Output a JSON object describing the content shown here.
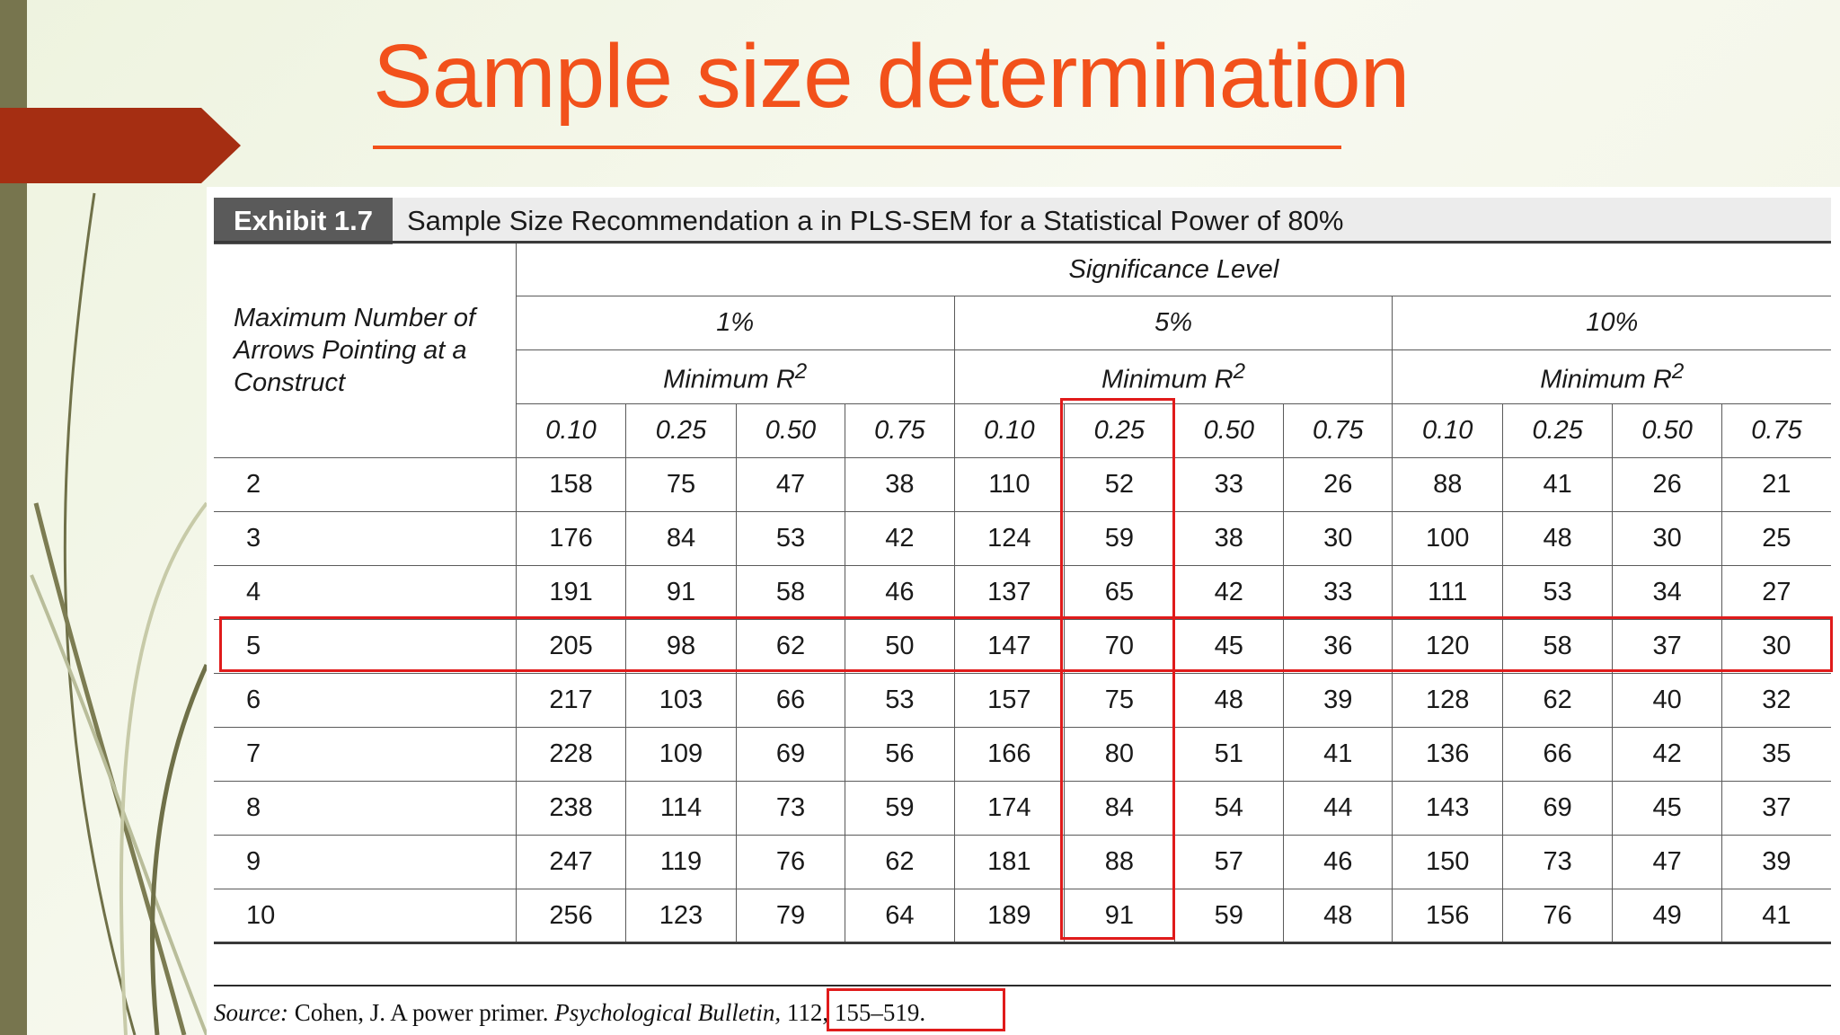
{
  "slide": {
    "title": "Sample size determination",
    "colors": {
      "accent": "#f2511b",
      "sidebar": "#77754e",
      "arrow": "#a52e12",
      "highlight": "#e01b1b"
    }
  },
  "exhibit": {
    "label": "Exhibit 1.7",
    "caption": "Sample Size Recommendation a in PLS-SEM for a Statistical Power of 80%",
    "stub_header": "Maximum Number of Arrows Pointing at a Construct",
    "significance_header": "Significance Level",
    "levels": [
      "1%",
      "5%",
      "10%"
    ],
    "min_r2_label": "Minimum R",
    "r2_superscript": "2",
    "r2_values": [
      "0.10",
      "0.25",
      "0.50",
      "0.75"
    ],
    "rows": [
      {
        "arrows": "2",
        "values": [
          "158",
          "75",
          "47",
          "38",
          "110",
          "52",
          "33",
          "26",
          "88",
          "41",
          "26",
          "21"
        ]
      },
      {
        "arrows": "3",
        "values": [
          "176",
          "84",
          "53",
          "42",
          "124",
          "59",
          "38",
          "30",
          "100",
          "48",
          "30",
          "25"
        ]
      },
      {
        "arrows": "4",
        "values": [
          "191",
          "91",
          "58",
          "46",
          "137",
          "65",
          "42",
          "33",
          "111",
          "53",
          "34",
          "27"
        ]
      },
      {
        "arrows": "5",
        "values": [
          "205",
          "98",
          "62",
          "50",
          "147",
          "70",
          "45",
          "36",
          "120",
          "58",
          "37",
          "30"
        ]
      },
      {
        "arrows": "6",
        "values": [
          "217",
          "103",
          "66",
          "53",
          "157",
          "75",
          "48",
          "39",
          "128",
          "62",
          "40",
          "32"
        ]
      },
      {
        "arrows": "7",
        "values": [
          "228",
          "109",
          "69",
          "56",
          "166",
          "80",
          "51",
          "41",
          "136",
          "66",
          "42",
          "35"
        ]
      },
      {
        "arrows": "8",
        "values": [
          "238",
          "114",
          "73",
          "59",
          "174",
          "84",
          "54",
          "44",
          "143",
          "69",
          "45",
          "37"
        ]
      },
      {
        "arrows": "9",
        "values": [
          "247",
          "119",
          "76",
          "62",
          "181",
          "88",
          "57",
          "46",
          "150",
          "73",
          "47",
          "39"
        ]
      },
      {
        "arrows": "10",
        "values": [
          "256",
          "123",
          "79",
          "64",
          "189",
          "91",
          "59",
          "48",
          "156",
          "76",
          "49",
          "41"
        ]
      }
    ],
    "source": {
      "label": "Source:",
      "author": "Cohen, J. A power primer.",
      "journal": "Psychological Bulletin,",
      "citation": "112, 155–519."
    }
  }
}
